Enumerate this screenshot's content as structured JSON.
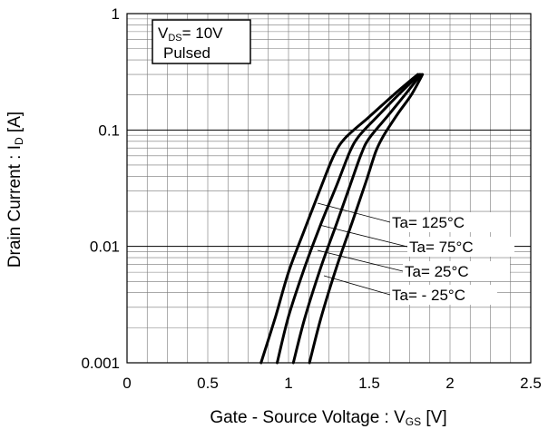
{
  "chart_data": {
    "type": "line",
    "xlabel": "Gate - Source Voltage : V",
    "xlabel_sub": "GS",
    "xlabel_unit": " [V]",
    "ylabel": "Drain Current : I",
    "ylabel_sub": "D",
    "ylabel_unit": " [A]",
    "xlim": [
      0,
      2.5
    ],
    "ylim": [
      0.001,
      1
    ],
    "yscale": "log",
    "grid": true,
    "x_ticks": [
      "0",
      "0.5",
      "1",
      "1.5",
      "2",
      "2.5"
    ],
    "y_ticks": [
      "0.001",
      "0.01",
      "0.1",
      "1"
    ],
    "conditions": {
      "vds_prefix": "V",
      "vds_sub": "DS",
      "vds_value": "= 10V",
      "mode": "Pulsed"
    },
    "series": [
      {
        "name": "Ta= 125°C",
        "x": [
          0.83,
          0.92,
          1.0,
          1.1,
          1.2,
          1.28,
          1.35,
          1.5,
          1.65,
          1.8
        ],
        "y": [
          0.001,
          0.0025,
          0.006,
          0.014,
          0.032,
          0.06,
          0.085,
          0.13,
          0.2,
          0.3
        ]
      },
      {
        "name": "Ta= 75°C",
        "x": [
          0.93,
          1.0,
          1.1,
          1.2,
          1.3,
          1.38,
          1.44,
          1.56,
          1.68,
          1.81
        ],
        "y": [
          0.001,
          0.0025,
          0.0066,
          0.0155,
          0.034,
          0.065,
          0.09,
          0.135,
          0.2,
          0.3
        ]
      },
      {
        "name": "Ta= 25°C",
        "x": [
          1.03,
          1.1,
          1.2,
          1.3,
          1.38,
          1.45,
          1.5,
          1.62,
          1.72,
          1.82
        ],
        "y": [
          0.001,
          0.0024,
          0.0066,
          0.016,
          0.033,
          0.062,
          0.085,
          0.135,
          0.2,
          0.3
        ]
      },
      {
        "name": "Ta= - 25°C",
        "x": [
          1.13,
          1.2,
          1.3,
          1.4,
          1.48,
          1.54,
          1.59,
          1.68,
          1.76,
          1.83
        ],
        "y": [
          0.001,
          0.0024,
          0.0068,
          0.017,
          0.036,
          0.065,
          0.09,
          0.14,
          0.2,
          0.3
        ]
      }
    ]
  }
}
